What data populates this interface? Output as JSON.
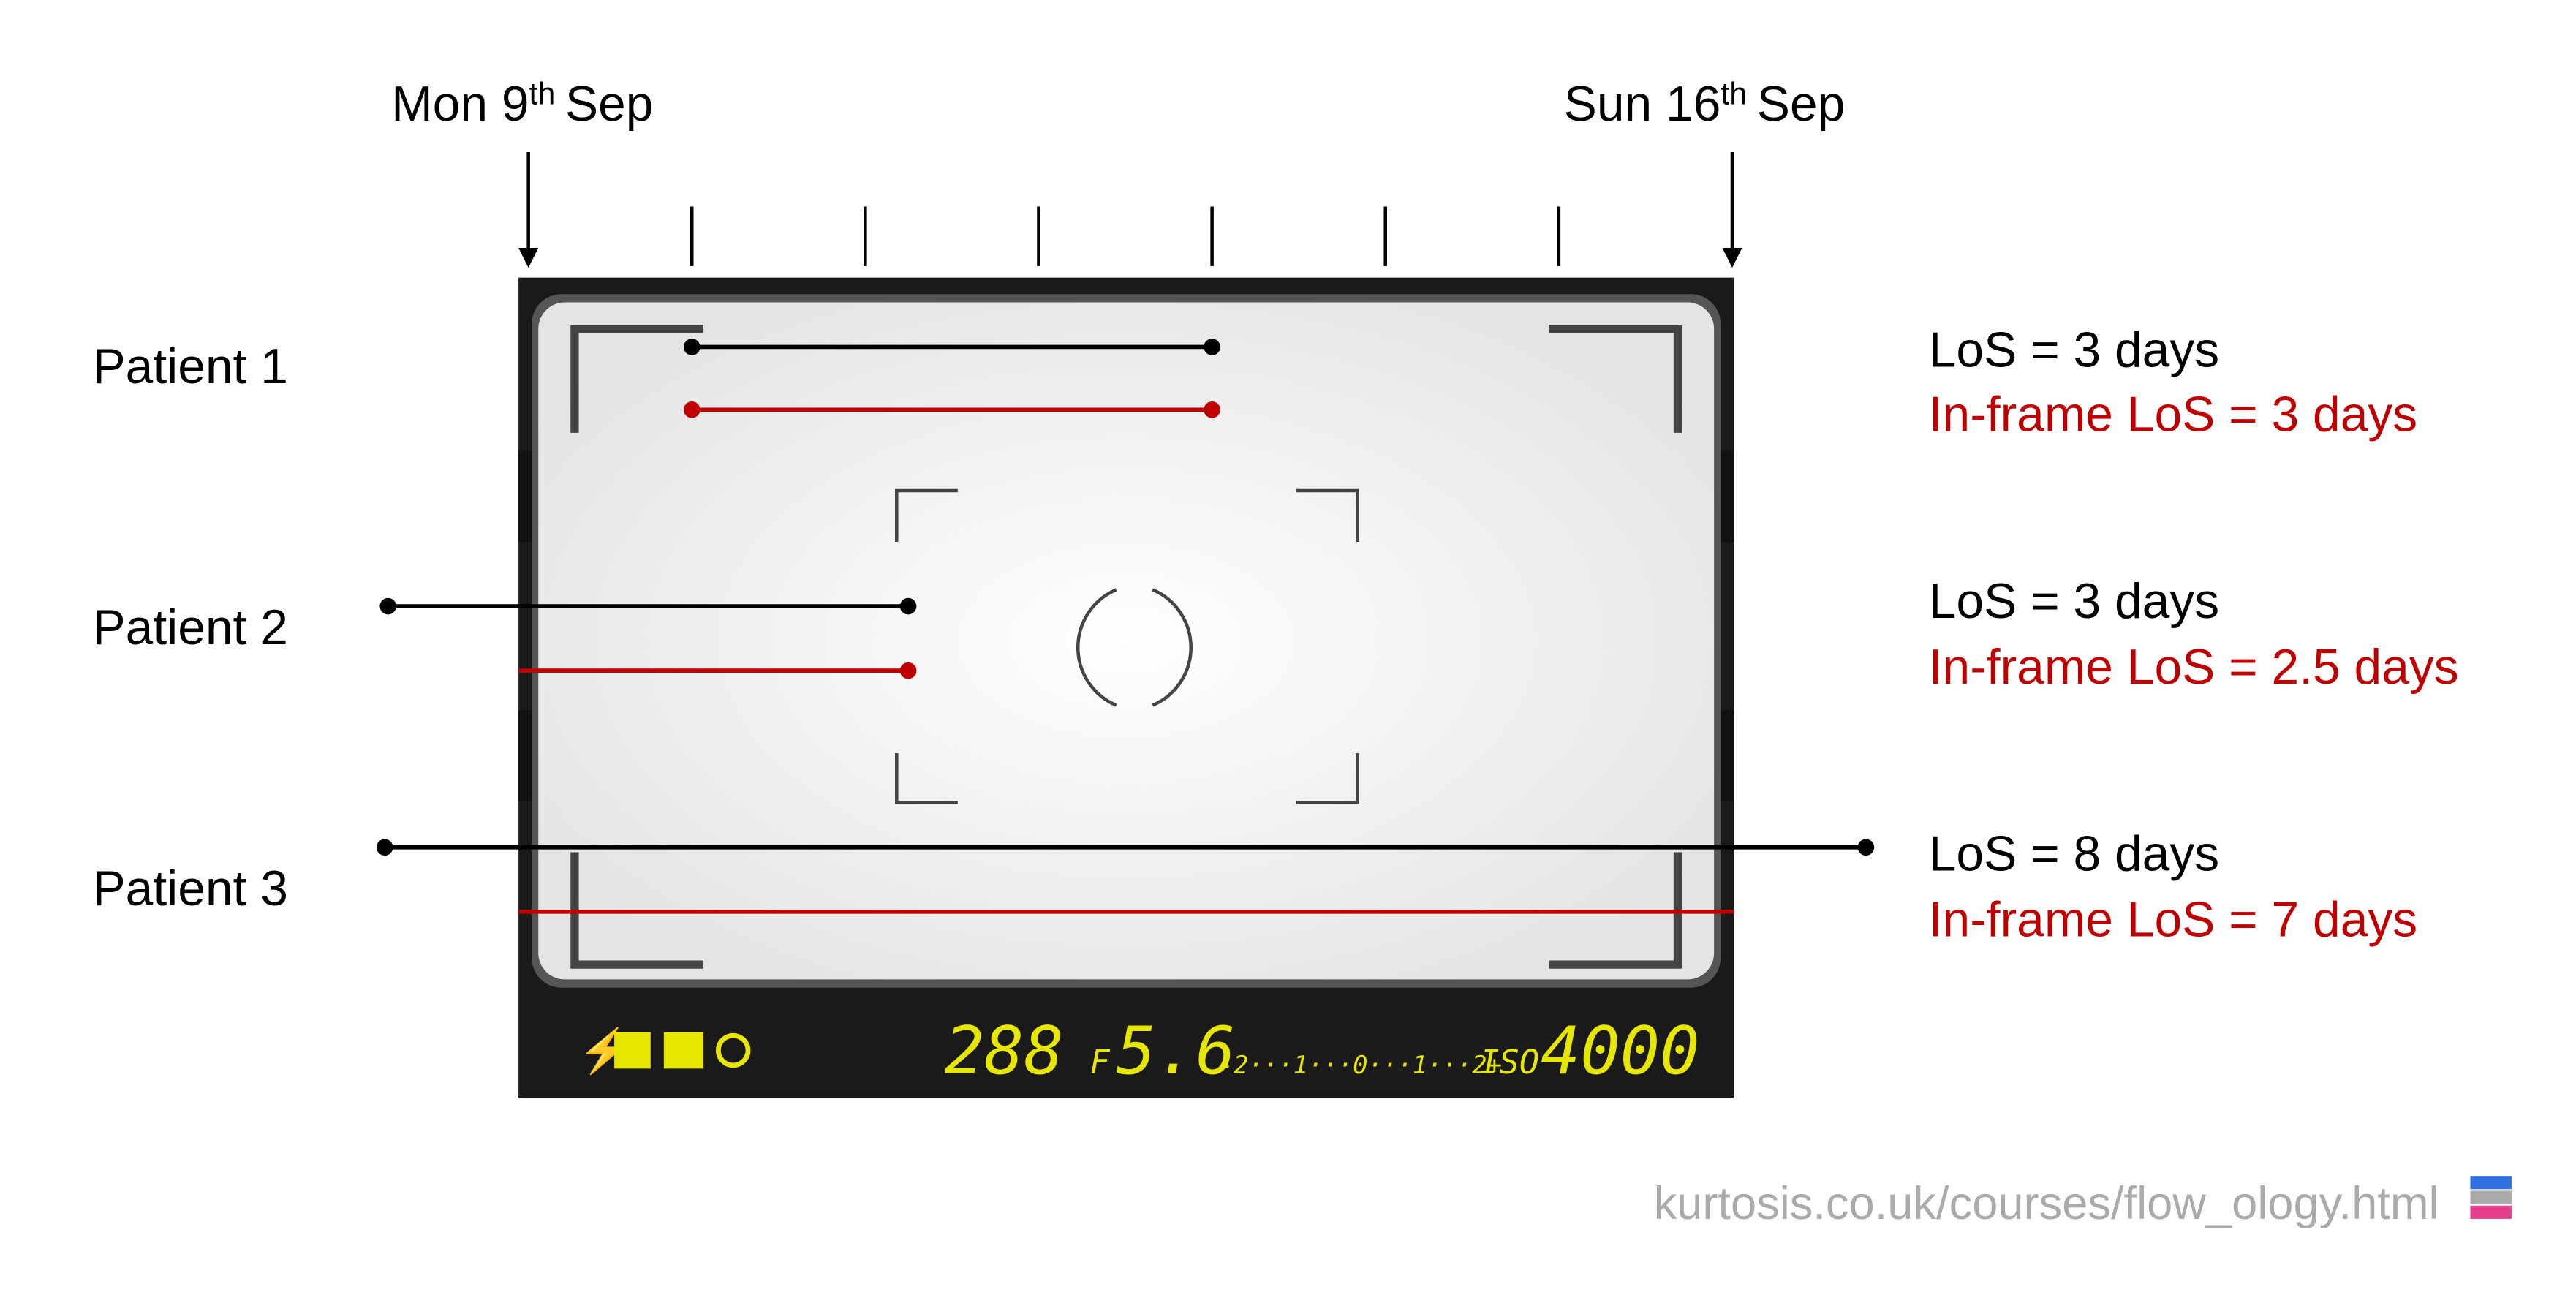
{
  "header": {
    "start": {
      "text": "Mon 9",
      "suffix": "th",
      "month": "Sep"
    },
    "end": {
      "text": "Sun 16",
      "suffix": "th",
      "month": "Sep"
    }
  },
  "patients": [
    {
      "name": "Patient 1",
      "los": "LoS = 3 days",
      "in_frame_los": "In-frame LoS = 3 days"
    },
    {
      "name": "Patient 2",
      "los": "LoS = 3 days",
      "in_frame_los": "In-frame LoS = 2.5 days"
    },
    {
      "name": "Patient 3",
      "los": "LoS = 8 days",
      "in_frame_los": "In-frame LoS = 7 days"
    }
  ],
  "display": {
    "shutter": "288",
    "f": "F",
    "aperture": "5.6",
    "scale": "-2···1···0···1···2+",
    "iso": "ISO",
    "iso_value": "4000"
  },
  "footer": {
    "url": "kurtosis.co.uk/courses/flow_ology.html"
  }
}
